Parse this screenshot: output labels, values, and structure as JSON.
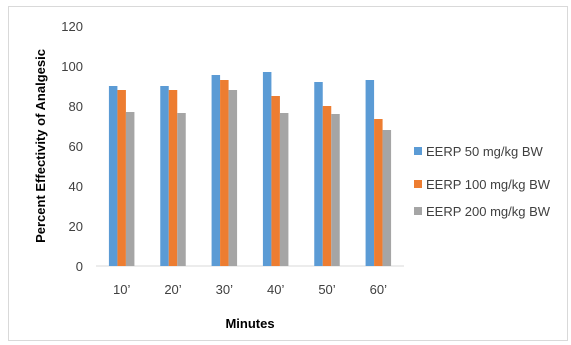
{
  "chart_data": {
    "type": "bar",
    "title": "",
    "xlabel": "Minutes",
    "ylabel": "Percent Effectivity of Analgesic",
    "categories": [
      "10’",
      "20’",
      "30’",
      "40’",
      "50’",
      "60’"
    ],
    "yticks": [
      "0",
      "20",
      "40",
      "60",
      "80",
      "100",
      "120"
    ],
    "ylim": [
      0,
      120
    ],
    "grid": false,
    "legend_position": "right",
    "series": [
      {
        "name": "EERP 50 mg/kg BW",
        "color": "#5b9bd5",
        "values": [
          90,
          90,
          95.5,
          97,
          92,
          93
        ]
      },
      {
        "name": "EERP 100 mg/kg BW",
        "color": "#ed7d31",
        "values": [
          88,
          88,
          93,
          85,
          80,
          73.5
        ]
      },
      {
        "name": "EERP 200 mg/kg BW",
        "color": "#a5a5a5",
        "values": [
          77,
          76.5,
          88,
          76.5,
          76,
          68
        ]
      }
    ]
  }
}
